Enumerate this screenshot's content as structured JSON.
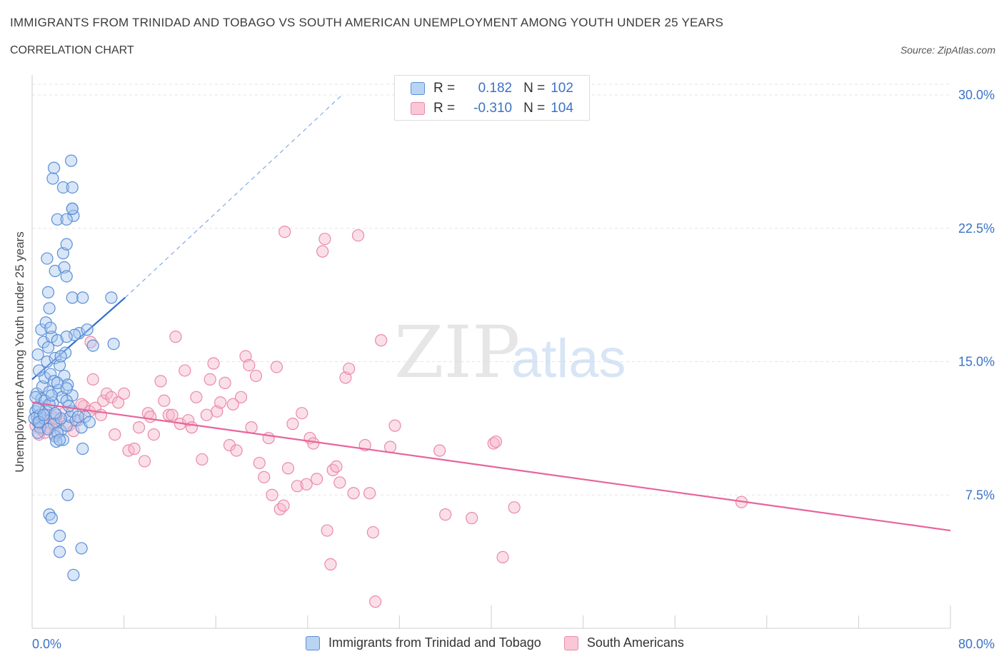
{
  "header": {
    "title": "IMMIGRANTS FROM TRINIDAD AND TOBAGO VS SOUTH AMERICAN UNEMPLOYMENT AMONG YOUTH UNDER 25 YEARS",
    "subtitle": "CORRELATION CHART",
    "source": "Source: ZipAtlas.com"
  },
  "legend": {
    "series1": {
      "r_label": "R =",
      "r_value": "0.182",
      "n_label": "N =",
      "n_value": "102"
    },
    "series2": {
      "r_label": "R =",
      "r_value": "-0.310",
      "n_label": "N =",
      "n_value": "104"
    }
  },
  "watermark": {
    "zip": "ZIP",
    "atlas": "atlas"
  },
  "colors": {
    "blue_fill": "#a8c8f0",
    "blue_stroke": "#5b8fd6",
    "blue_line": "#2f6fd0",
    "pink_fill": "#f6b8cb",
    "pink_stroke": "#e98aa8",
    "pink_line": "#e8649a",
    "tick_label": "#3a73c6",
    "grid": "#e3e3e3"
  },
  "chart_data": {
    "type": "scatter",
    "title": "IMMIGRANTS FROM TRINIDAD AND TOBAGO VS SOUTH AMERICAN UNEMPLOYMENT AMONG YOUTH UNDER 25 YEARS",
    "xlabel": "",
    "ylabel": "Unemployment Among Youth under 25 years",
    "xlim": [
      0,
      80
    ],
    "ylim": [
      0,
      30
    ],
    "x_tick_labels": [
      "0.0%",
      "80.0%"
    ],
    "y_ticks": [
      7.5,
      15.0,
      22.5,
      30.0
    ],
    "y_tick_labels": [
      "7.5%",
      "15.0%",
      "22.5%",
      "30.0%"
    ],
    "grid": true,
    "legend_position": "top-center",
    "series": [
      {
        "name": "Immigrants from Trinidad and Tobago",
        "r": 0.182,
        "n": 102,
        "trend": {
          "x": [
            0.0,
            8.1
          ],
          "y": [
            14.0,
            18.6
          ],
          "dashed_to": [
            27.0,
            30.0
          ]
        },
        "points": [
          [
            0.3,
            12.2
          ],
          [
            0.4,
            11.9
          ],
          [
            0.5,
            11.6
          ],
          [
            0.6,
            12.5
          ],
          [
            0.7,
            11.3
          ],
          [
            0.4,
            13.2
          ],
          [
            0.8,
            12.9
          ],
          [
            1.0,
            11.8
          ],
          [
            1.2,
            12.3
          ],
          [
            0.9,
            13.6
          ],
          [
            1.1,
            14.1
          ],
          [
            1.5,
            13.3
          ],
          [
            1.8,
            12.7
          ],
          [
            2.1,
            12.0
          ],
          [
            0.6,
            14.5
          ],
          [
            1.3,
            15.0
          ],
          [
            1.6,
            14.3
          ],
          [
            1.9,
            13.9
          ],
          [
            2.3,
            13.4
          ],
          [
            2.6,
            13.0
          ],
          [
            0.5,
            15.4
          ],
          [
            1.0,
            16.1
          ],
          [
            1.4,
            15.8
          ],
          [
            1.7,
            16.4
          ],
          [
            2.0,
            15.2
          ],
          [
            2.4,
            14.8
          ],
          [
            2.8,
            14.2
          ],
          [
            3.1,
            13.7
          ],
          [
            3.5,
            13.1
          ],
          [
            0.8,
            16.8
          ],
          [
            1.2,
            17.2
          ],
          [
            1.6,
            16.9
          ],
          [
            2.2,
            16.2
          ],
          [
            0.7,
            12.0
          ],
          [
            1.9,
            11.5
          ],
          [
            2.5,
            11.1
          ],
          [
            2.0,
            10.8
          ],
          [
            3.0,
            11.4
          ],
          [
            3.3,
            11.9
          ],
          [
            3.8,
            11.7
          ],
          [
            4.3,
            11.3
          ],
          [
            4.6,
            11.9
          ],
          [
            5.0,
            11.6
          ],
          [
            0.5,
            11.0
          ],
          [
            1.4,
            11.2
          ],
          [
            2.7,
            10.6
          ],
          [
            1.5,
            18.0
          ],
          [
            1.4,
            18.9
          ],
          [
            1.3,
            20.8
          ],
          [
            2.0,
            20.1
          ],
          [
            2.8,
            20.3
          ],
          [
            3.0,
            19.8
          ],
          [
            2.7,
            21.1
          ],
          [
            3.0,
            21.6
          ],
          [
            2.2,
            23.0
          ],
          [
            3.5,
            23.6
          ],
          [
            3.6,
            23.2
          ],
          [
            3.5,
            23.6
          ],
          [
            3.0,
            23.0
          ],
          [
            2.7,
            24.8
          ],
          [
            3.5,
            24.8
          ],
          [
            1.8,
            25.3
          ],
          [
            1.9,
            25.9
          ],
          [
            3.4,
            26.3
          ],
          [
            3.5,
            18.6
          ],
          [
            4.4,
            18.6
          ],
          [
            6.9,
            18.6
          ],
          [
            4.1,
            16.6
          ],
          [
            3.7,
            16.5
          ],
          [
            3.0,
            16.4
          ],
          [
            4.8,
            16.8
          ],
          [
            5.3,
            15.9
          ],
          [
            7.1,
            16.0
          ],
          [
            2.9,
            15.5
          ],
          [
            2.5,
            15.3
          ],
          [
            3.0,
            13.5
          ],
          [
            0.3,
            13.0
          ],
          [
            0.5,
            12.4
          ],
          [
            1.1,
            12.8
          ],
          [
            1.5,
            12.6
          ],
          [
            3.0,
            12.8
          ],
          [
            3.5,
            12.2
          ],
          [
            0.2,
            11.8
          ],
          [
            0.6,
            11.6
          ],
          [
            1.0,
            12.0
          ],
          [
            1.7,
            13.1
          ],
          [
            2.2,
            13.8
          ],
          [
            2.5,
            11.8
          ],
          [
            3.2,
            12.5
          ],
          [
            4.0,
            11.9
          ],
          [
            1.5,
            6.4
          ],
          [
            1.7,
            6.2
          ],
          [
            2.4,
            5.2
          ],
          [
            2.4,
            4.3
          ],
          [
            4.3,
            4.5
          ],
          [
            3.6,
            3.0
          ],
          [
            3.1,
            7.5
          ],
          [
            4.4,
            10.1
          ],
          [
            2.2,
            11.0
          ],
          [
            2.1,
            10.5
          ],
          [
            2.4,
            10.6
          ],
          [
            2.0,
            12.1
          ]
        ]
      },
      {
        "name": "South Americans",
        "r": -0.31,
        "n": 104,
        "trend": {
          "x": [
            0.0,
            80.0
          ],
          "y": [
            12.7,
            5.5
          ]
        },
        "points": [
          [
            0.3,
            11.4
          ],
          [
            0.5,
            11.8
          ],
          [
            0.7,
            11.2
          ],
          [
            1.0,
            11.6
          ],
          [
            1.2,
            12.0
          ],
          [
            1.5,
            11.3
          ],
          [
            1.8,
            11.9
          ],
          [
            2.1,
            11.5
          ],
          [
            2.4,
            11.7
          ],
          [
            2.8,
            12.1
          ],
          [
            3.2,
            11.4
          ],
          [
            3.6,
            11.1
          ],
          [
            4.0,
            11.7
          ],
          [
            4.5,
            12.5
          ],
          [
            5.0,
            12.2
          ],
          [
            5.5,
            12.4
          ],
          [
            6.0,
            12.0
          ],
          [
            0.6,
            10.9
          ],
          [
            1.1,
            11.0
          ],
          [
            2.0,
            11.8
          ],
          [
            4.3,
            12.6
          ],
          [
            5.1,
            16.1
          ],
          [
            5.3,
            14.0
          ],
          [
            6.2,
            12.8
          ],
          [
            6.5,
            13.2
          ],
          [
            6.9,
            13.0
          ],
          [
            7.2,
            10.9
          ],
          [
            7.5,
            12.7
          ],
          [
            8.0,
            13.2
          ],
          [
            8.4,
            10.0
          ],
          [
            8.9,
            10.1
          ],
          [
            9.3,
            11.3
          ],
          [
            9.8,
            9.4
          ],
          [
            10.1,
            12.1
          ],
          [
            10.3,
            11.9
          ],
          [
            10.6,
            10.9
          ],
          [
            11.2,
            13.9
          ],
          [
            11.5,
            12.8
          ],
          [
            11.9,
            12.0
          ],
          [
            12.2,
            12.0
          ],
          [
            12.5,
            16.4
          ],
          [
            12.9,
            11.5
          ],
          [
            13.3,
            14.5
          ],
          [
            13.6,
            11.7
          ],
          [
            13.9,
            11.3
          ],
          [
            14.3,
            13.0
          ],
          [
            14.8,
            9.5
          ],
          [
            15.2,
            12.0
          ],
          [
            15.5,
            14.0
          ],
          [
            15.8,
            14.9
          ],
          [
            16.1,
            12.2
          ],
          [
            16.4,
            12.7
          ],
          [
            16.8,
            13.8
          ],
          [
            17.2,
            10.3
          ],
          [
            17.5,
            12.6
          ],
          [
            17.8,
            10.0
          ],
          [
            18.2,
            13.0
          ],
          [
            18.6,
            15.3
          ],
          [
            18.9,
            14.8
          ],
          [
            19.1,
            11.3
          ],
          [
            19.5,
            14.2
          ],
          [
            19.8,
            9.3
          ],
          [
            20.2,
            8.5
          ],
          [
            20.6,
            10.7
          ],
          [
            20.9,
            7.5
          ],
          [
            21.3,
            14.7
          ],
          [
            21.6,
            6.7
          ],
          [
            21.9,
            6.9
          ],
          [
            22.3,
            9.0
          ],
          [
            22.7,
            11.5
          ],
          [
            23.1,
            8.0
          ],
          [
            23.5,
            12.1
          ],
          [
            23.9,
            8.1
          ],
          [
            24.2,
            10.7
          ],
          [
            24.5,
            10.4
          ],
          [
            24.8,
            8.4
          ],
          [
            25.3,
            21.2
          ],
          [
            25.5,
            21.9
          ],
          [
            25.7,
            5.5
          ],
          [
            26.0,
            3.6
          ],
          [
            26.2,
            8.9
          ],
          [
            26.5,
            9.1
          ],
          [
            26.8,
            8.2
          ],
          [
            27.3,
            14.1
          ],
          [
            27.6,
            14.6
          ],
          [
            28.0,
            7.6
          ],
          [
            28.4,
            22.1
          ],
          [
            29.0,
            10.3
          ],
          [
            29.4,
            7.6
          ],
          [
            29.7,
            5.4
          ],
          [
            29.9,
            1.5
          ],
          [
            30.4,
            16.2
          ],
          [
            31.2,
            10.2
          ],
          [
            31.6,
            11.4
          ],
          [
            22.0,
            22.3
          ],
          [
            35.5,
            10.0
          ],
          [
            36.0,
            6.4
          ],
          [
            38.3,
            6.2
          ],
          [
            40.2,
            10.4
          ],
          [
            40.4,
            10.5
          ],
          [
            41.0,
            4.0
          ],
          [
            42.0,
            6.8
          ],
          [
            61.8,
            7.1
          ],
          [
            2.0,
            10.9
          ]
        ]
      }
    ]
  },
  "bottom_legend": {
    "item1": "Immigrants from Trinidad and Tobago",
    "item2": "South Americans"
  }
}
